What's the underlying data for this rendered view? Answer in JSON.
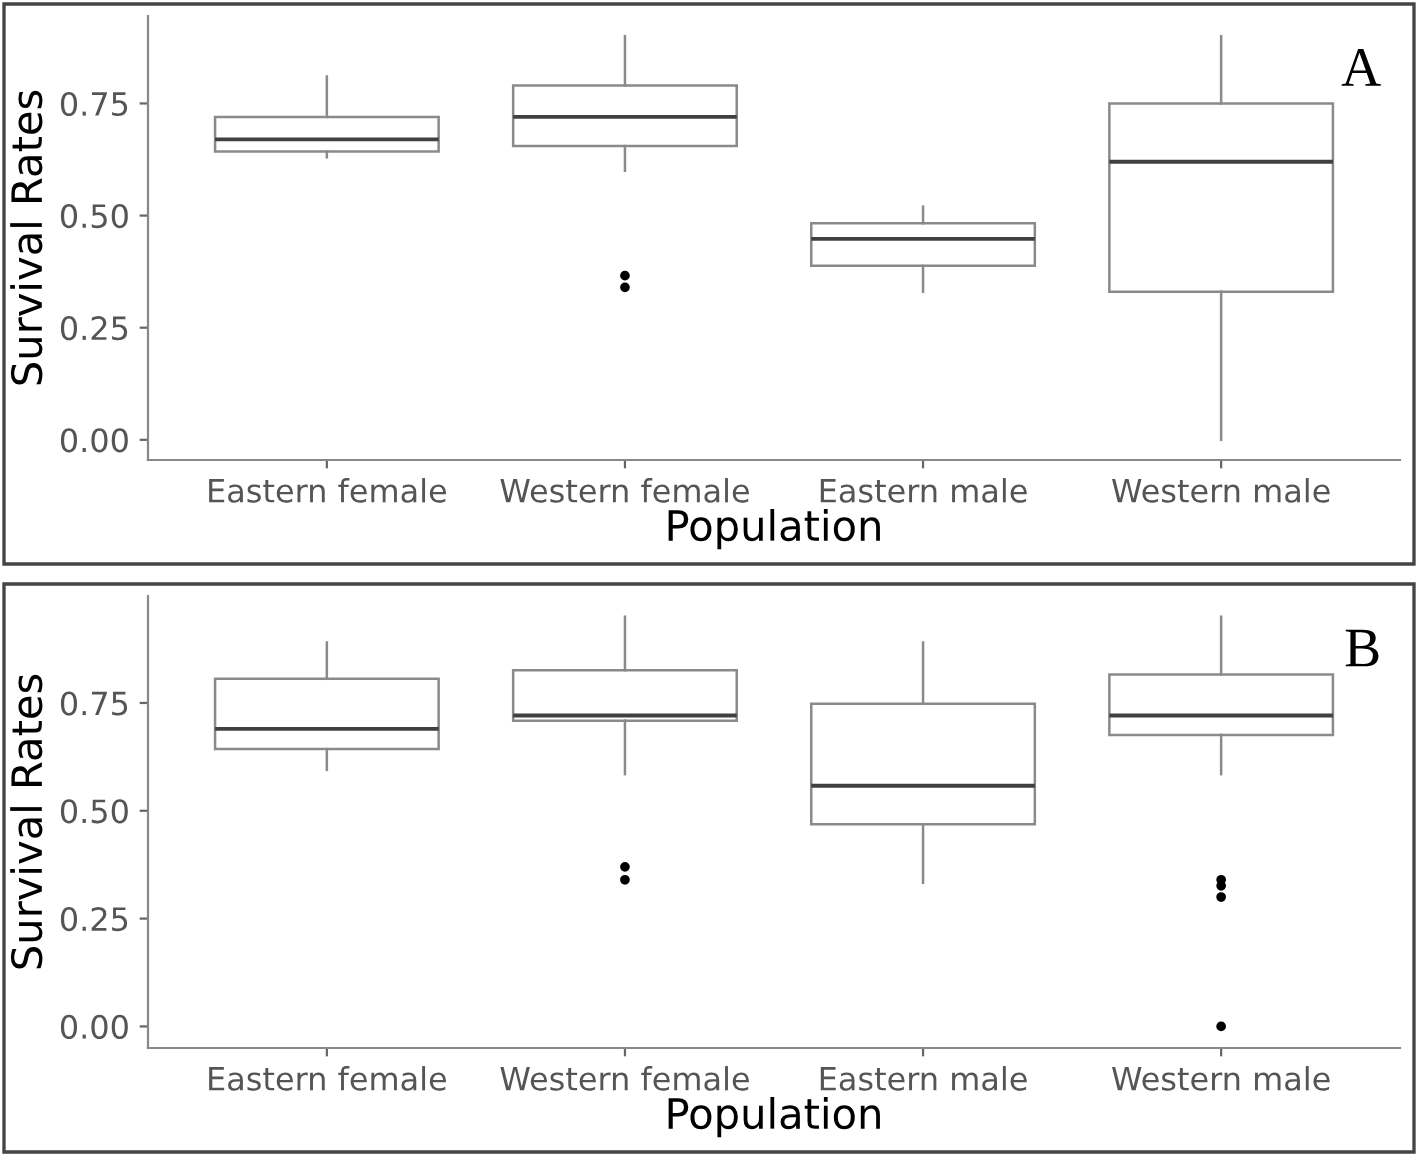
{
  "chart_data": [
    {
      "type": "box",
      "xlabel": "Population",
      "ylabel": "Survival Rates",
      "categories": [
        "Eastern female",
        "Western female",
        "Eastern male",
        "Western male"
      ],
      "ylim": [
        -0.045,
        0.945
      ],
      "yticks": [
        {
          "value": 0,
          "label": "0.00"
        },
        {
          "value": 0.25,
          "label": "0.25"
        },
        {
          "value": 0.5,
          "label": "0.50"
        },
        {
          "value": 0.75,
          "label": "0.75"
        }
      ],
      "grid": false,
      "annotations": [
        "A"
      ],
      "boxes": [
        {
          "low": 0.63,
          "q1": 0.643,
          "median": 0.67,
          "q3": 0.72,
          "high": 0.81
        },
        {
          "low": 0.6,
          "q1": 0.655,
          "median": 0.72,
          "q3": 0.79,
          "high": 0.9,
          "outliers": [
            0.366,
            0.34
          ]
        },
        {
          "low": 0.33,
          "q1": 0.388,
          "median": 0.448,
          "q3": 0.483,
          "high": 0.52
        },
        {
          "low": 0.0,
          "q1": 0.33,
          "median": 0.62,
          "q3": 0.75,
          "high": 0.9
        }
      ]
    },
    {
      "type": "box",
      "xlabel": "Population",
      "ylabel": "Survival Rates",
      "categories": [
        "Eastern female",
        "Western female",
        "Eastern male",
        "Western male"
      ],
      "ylim": [
        -0.05,
        0.998
      ],
      "yticks": [
        {
          "value": 0,
          "label": "0.00"
        },
        {
          "value": 0.25,
          "label": "0.25"
        },
        {
          "value": 0.5,
          "label": "0.50"
        },
        {
          "value": 0.75,
          "label": "0.75"
        }
      ],
      "grid": false,
      "annotations": [
        "B"
      ],
      "boxes": [
        {
          "low": 0.595,
          "q1": 0.643,
          "median": 0.69,
          "q3": 0.806,
          "high": 0.89
        },
        {
          "low": 0.585,
          "q1": 0.709,
          "median": 0.721,
          "q3": 0.826,
          "high": 0.95,
          "outliers": [
            0.37,
            0.34
          ]
        },
        {
          "low": 0.333,
          "q1": 0.469,
          "median": 0.558,
          "q3": 0.748,
          "high": 0.89
        },
        {
          "low": 0.585,
          "q1": 0.676,
          "median": 0.721,
          "q3": 0.816,
          "high": 0.95,
          "outliers": [
            0.34,
            0.326,
            0.3,
            0.0
          ]
        }
      ]
    }
  ]
}
